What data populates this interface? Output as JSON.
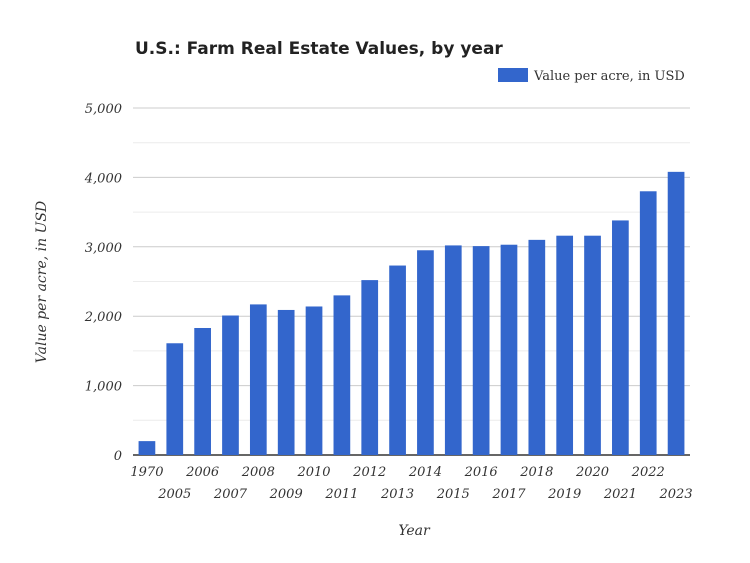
{
  "chart_data": {
    "type": "bar",
    "title": "U.S.: Farm Real Estate Values, by year",
    "xlabel": "Year",
    "ylabel": "Value per acre, in USD",
    "ylim": [
      0,
      5000
    ],
    "yticks": [
      "0",
      "1,000",
      "2,000",
      "3,000",
      "4,000",
      "5,000"
    ],
    "grid": true,
    "legend_position": "top-right",
    "color": "#3366cc",
    "categories": [
      "1970",
      "2005",
      "2006",
      "2007",
      "2008",
      "2009",
      "2010",
      "2011",
      "2012",
      "2013",
      "2014",
      "2015",
      "2016",
      "2017",
      "2018",
      "2019",
      "2020",
      "2021",
      "2022",
      "2023"
    ],
    "series": [
      {
        "name": "Value per acre, in USD",
        "values": [
          200,
          1610,
          1830,
          2010,
          2170,
          2090,
          2140,
          2300,
          2520,
          2730,
          2950,
          3020,
          3010,
          3030,
          3100,
          3160,
          3160,
          3380,
          3800,
          4080
        ]
      }
    ]
  }
}
